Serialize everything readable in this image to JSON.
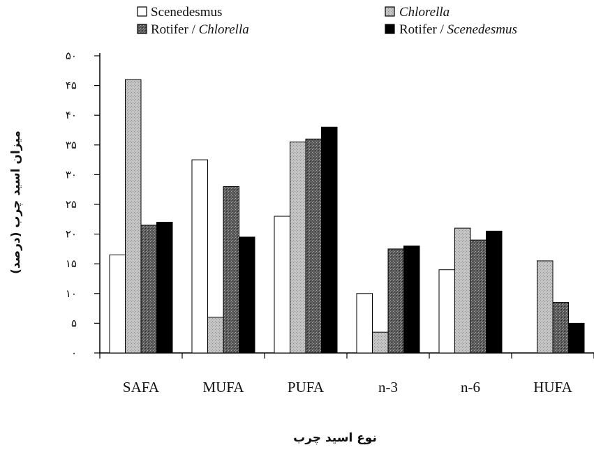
{
  "chart_data": {
    "type": "bar",
    "categories": [
      "SAFA",
      "MUFA",
      "PUFA",
      "n-3",
      "n-6",
      "HUFA"
    ],
    "series": [
      {
        "name": "Scenedesmus",
        "values": [
          16.5,
          32.5,
          23,
          10,
          14,
          0
        ],
        "color": "#ffffff",
        "pattern": "empty"
      },
      {
        "name": "Chlorella",
        "values": [
          46,
          6,
          35.5,
          3.5,
          21,
          15.5
        ],
        "color": "#bdbdbd",
        "pattern": "light-stipple"
      },
      {
        "name": "Rotifer / Chlorella",
        "values": [
          21.5,
          28,
          36,
          17.5,
          19,
          8.5
        ],
        "color": "#6a6a6a",
        "pattern": "dark-stipple"
      },
      {
        "name": "Rotifer / Scenedesmus",
        "values": [
          22,
          19.5,
          38,
          18,
          20.5,
          5
        ],
        "color": "#000000",
        "pattern": "solid"
      }
    ],
    "legend": [
      {
        "prefix": "",
        "name": "Scenedesmus",
        "italic": false
      },
      {
        "prefix": "",
        "name": "Chlorella",
        "italic": true
      },
      {
        "prefix": "Rotifer / ",
        "name": "Chlorella",
        "italic": true
      },
      {
        "prefix": "Rotifer / ",
        "name": "Scenedesmus",
        "italic": true
      }
    ],
    "yticks": [
      "۰",
      "۵",
      "۱۰",
      "۱۵",
      "۲۰",
      "۲۵",
      "۳۰",
      "۳۵",
      "۴۰",
      "۴۵",
      "۵۰"
    ],
    "ylim": [
      0,
      50
    ],
    "ylabel": "میزان اسید چرب (درصد)",
    "xlabel": "نوع اسید چرب",
    "legend_position": "top",
    "grid": false
  }
}
